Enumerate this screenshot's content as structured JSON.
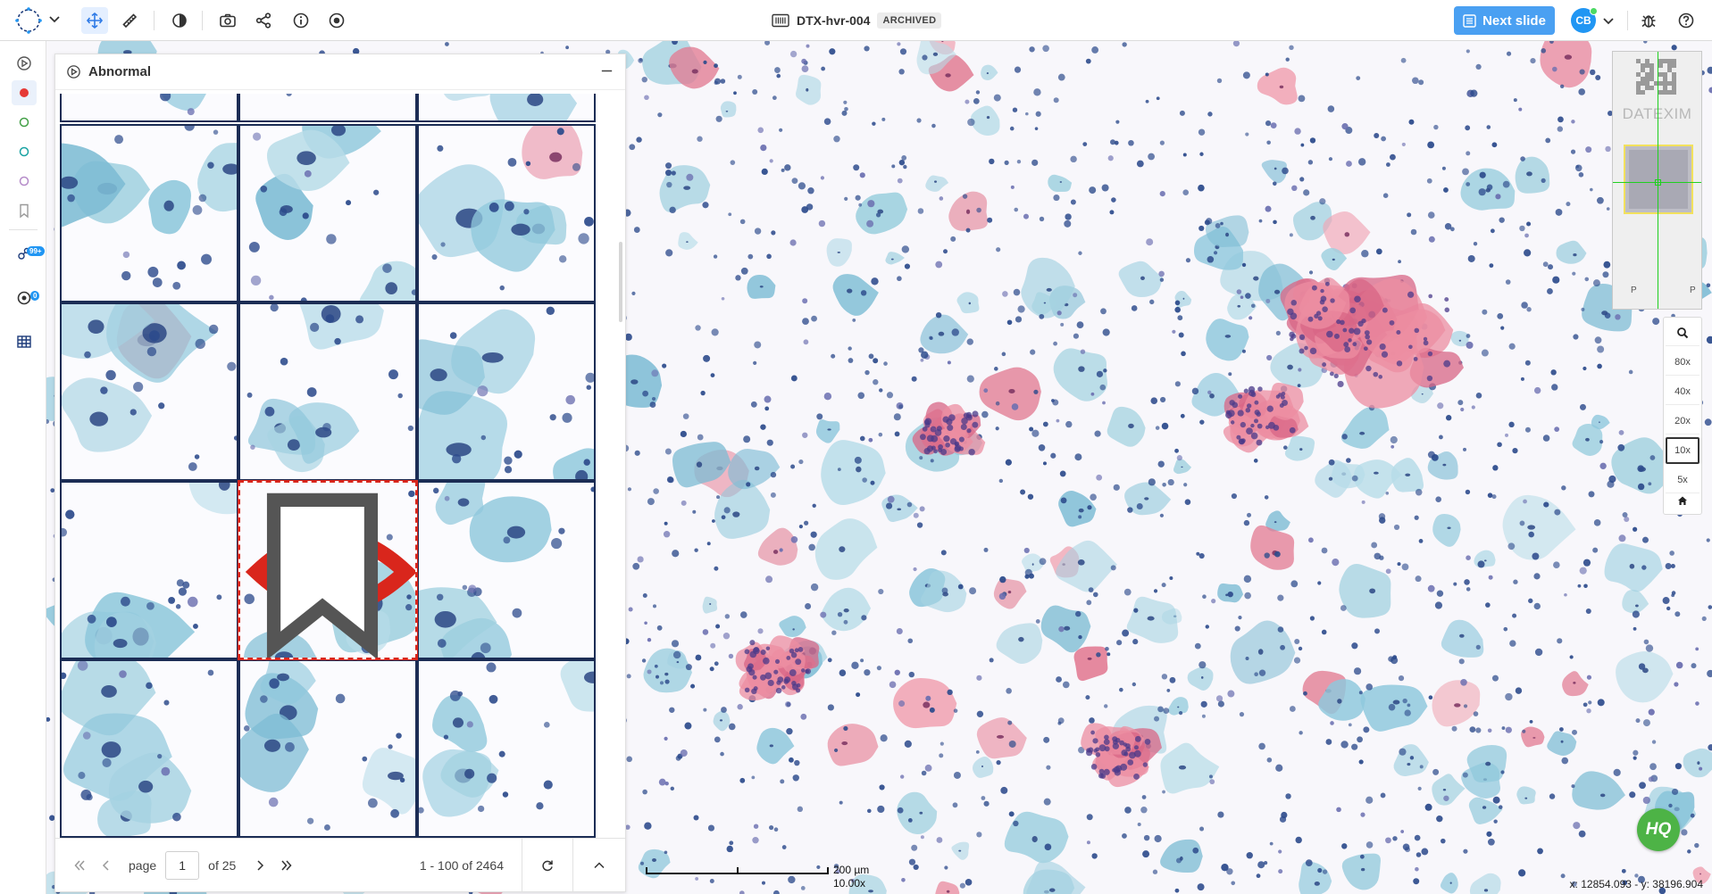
{
  "toolbar": {
    "slide_id": "DTX-hvr-004",
    "status": "ARCHIVED",
    "next_slide_label": "Next slide",
    "user_initials": "CB",
    "tools": [
      "pan-icon",
      "ruler-icon",
      "contrast-icon",
      "camera-icon",
      "share-icon",
      "info-icon",
      "record-icon"
    ]
  },
  "sidebar": {
    "items": [
      {
        "icon": "gallery-icon"
      },
      {
        "icon": "red-dot-icon",
        "color": "#e53935"
      },
      {
        "icon": "green-circle-icon",
        "color": "#43a047"
      },
      {
        "icon": "teal-circle-icon",
        "color": "#1aa3a3"
      },
      {
        "icon": "purple-circle-icon",
        "color": "#b58bc9"
      },
      {
        "icon": "bookmark-icon"
      },
      {
        "icon": "ai-cells-icon",
        "badge": "99+"
      },
      {
        "icon": "target-icon",
        "badge": "0"
      },
      {
        "icon": "table-icon"
      }
    ]
  },
  "panel": {
    "title": "Abnormal",
    "pagination": {
      "page_label": "page",
      "current_page": "1",
      "of_label": "of 25",
      "range": "1 - 100 of 2464"
    }
  },
  "navigator": {
    "brand": "DATEXIM",
    "marks": [
      "P",
      "P"
    ]
  },
  "zoom": {
    "levels": [
      "80x",
      "40x",
      "20x",
      "10x",
      "5x"
    ],
    "current": "10x"
  },
  "overlay": {
    "badge": "HQ",
    "scale_label": "200 µm",
    "scale_zoom": "10.00x",
    "coordinates": "x: 12854.093 - y: 38196.904"
  },
  "colors": {
    "accent": "#4aa0f2",
    "selected_border": "#d9261c",
    "grid_border": "#1c2d55",
    "hq": "#4db346"
  }
}
